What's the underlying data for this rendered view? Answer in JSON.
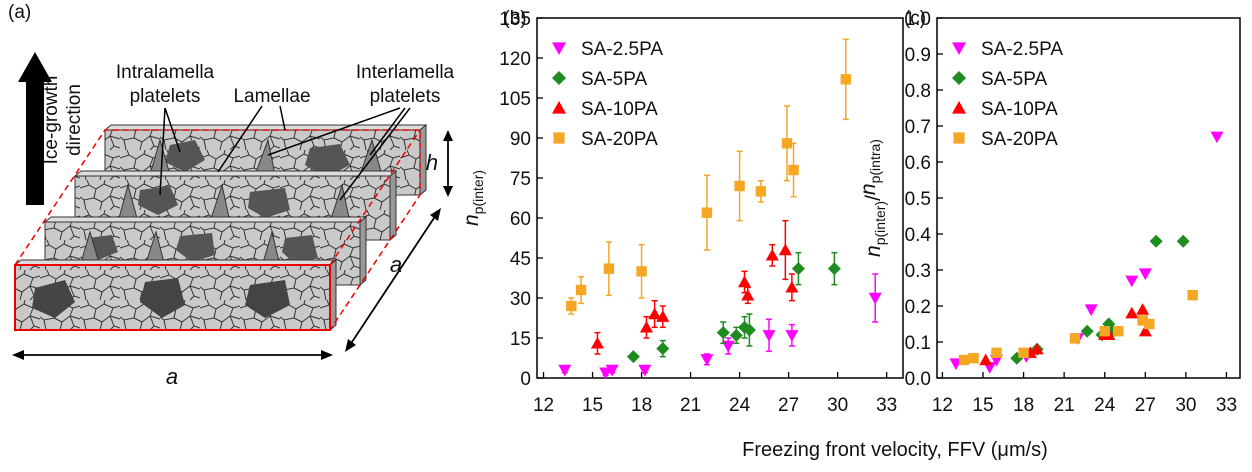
{
  "diagram": {
    "panel": "(a)",
    "ice_growth": [
      "Ice-growth",
      "direction"
    ],
    "intralamella": [
      "Intralamella",
      "platelets"
    ],
    "lamellae": "Lamellae",
    "interlamella": [
      "Interlamella",
      "platelets"
    ],
    "height": "h",
    "width": "a",
    "depth": "a"
  },
  "xlabel": "Freezing front velocity, FFV (μm/s)",
  "chart_data": [
    {
      "type": "scatter",
      "panel": "(b)",
      "ylabel": [
        "n",
        "p(inter)"
      ],
      "xlim": [
        11.6,
        34
      ],
      "xticks": [
        12,
        15,
        18,
        21,
        24,
        27,
        30,
        33
      ],
      "ylim": [
        0,
        135
      ],
      "yticks": [
        0,
        15,
        30,
        45,
        60,
        75,
        90,
        105,
        120,
        135
      ],
      "legend": "upper left",
      "series": [
        {
          "name": "SA-2.5PA",
          "color": "#ff00ff",
          "marker": "triangle-down",
          "x": [
            13.3,
            15.8,
            16.2,
            18.2,
            22,
            23.3,
            25.8,
            27.2,
            32.3
          ],
          "values": [
            3,
            2,
            3,
            3,
            7,
            12,
            16,
            16,
            30
          ],
          "errors": [
            1,
            1,
            1,
            1,
            2,
            3,
            6,
            4,
            9
          ]
        },
        {
          "name": "SA-5PA",
          "color": "#1e8c1e",
          "marker": "diamond",
          "x": [
            17.5,
            19.3,
            23,
            23.8,
            24.3,
            24.6,
            27.6,
            29.8
          ],
          "values": [
            8,
            11,
            17,
            16,
            19,
            18,
            41,
            41
          ],
          "errors": [
            1,
            3,
            4,
            3,
            4,
            6,
            6,
            6
          ]
        },
        {
          "name": "SA-10PA",
          "color": "#ff0000",
          "marker": "triangle-up",
          "x": [
            15.3,
            18.3,
            18.8,
            19.3,
            24.3,
            24.5,
            26,
            26.8,
            27.2
          ],
          "values": [
            13,
            19,
            24,
            23,
            36,
            31,
            46,
            48,
            34
          ],
          "errors": [
            4,
            4,
            5,
            4,
            4,
            3,
            4,
            11,
            5
          ]
        },
        {
          "name": "SA-20PA",
          "color": "#f5a623",
          "marker": "square",
          "x": [
            13.7,
            14.3,
            16,
            18,
            22,
            24,
            25.3,
            26.9,
            27.3,
            30.5
          ],
          "values": [
            27,
            33,
            41,
            40,
            62,
            72,
            70,
            88,
            78,
            112
          ],
          "errors": [
            3,
            5,
            10,
            10,
            14,
            13,
            4,
            14,
            10,
            15
          ]
        }
      ]
    },
    {
      "type": "scatter",
      "panel": "(c)",
      "ylabel": [
        "n",
        "p(inter)",
        "/",
        "n",
        "p(intra)"
      ],
      "xlim": [
        11.6,
        34
      ],
      "xticks": [
        12,
        15,
        18,
        21,
        24,
        27,
        30,
        33
      ],
      "ylim": [
        0,
        1
      ],
      "yticks": [
        {
          "value": 0,
          "label": "0.0"
        },
        0.1,
        0.2,
        0.3,
        0.4,
        0.5,
        0.6,
        0.7,
        0.8,
        0.9,
        {
          "value": 1,
          "label": "1.0"
        }
      ],
      "legend": "upper left",
      "series": [
        {
          "name": "SA-2.5PA",
          "color": "#ff00ff",
          "marker": "triangle-down",
          "x": [
            13,
            15.5,
            16,
            18.2,
            22,
            23,
            26,
            27,
            32.3
          ],
          "values": [
            0.04,
            0.03,
            0.05,
            0.06,
            0.11,
            0.19,
            0.27,
            0.29,
            0.67
          ]
        },
        {
          "name": "SA-5PA",
          "color": "#1e8c1e",
          "marker": "diamond",
          "x": [
            17.5,
            19,
            22.7,
            23.8,
            24.3,
            24.6,
            27.8,
            29.8
          ],
          "values": [
            0.055,
            0.08,
            0.13,
            0.12,
            0.15,
            0.13,
            0.38,
            0.38
          ]
        },
        {
          "name": "SA-10PA",
          "color": "#ff0000",
          "marker": "triangle-up",
          "x": [
            15.2,
            18.5,
            19,
            24,
            24.3,
            26,
            26.8,
            27
          ],
          "values": [
            0.05,
            0.07,
            0.08,
            0.12,
            0.12,
            0.18,
            0.19,
            0.13
          ]
        },
        {
          "name": "SA-20PA",
          "color": "#f5a623",
          "marker": "square",
          "x": [
            13.6,
            14.3,
            16,
            18,
            21.8,
            24,
            25,
            26.8,
            27.3,
            30.5
          ],
          "values": [
            0.05,
            0.055,
            0.07,
            0.07,
            0.11,
            0.13,
            0.13,
            0.16,
            0.15,
            0.23
          ]
        }
      ]
    }
  ]
}
